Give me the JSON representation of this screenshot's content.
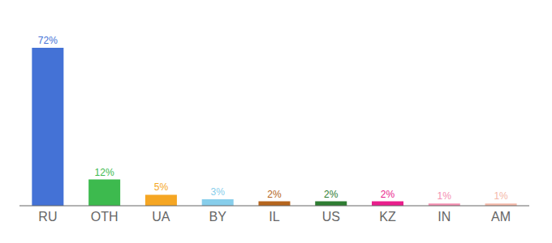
{
  "chart_data": {
    "type": "bar",
    "categories": [
      "RU",
      "OTH",
      "UA",
      "BY",
      "IL",
      "US",
      "KZ",
      "IN",
      "AM"
    ],
    "values": [
      72,
      12,
      5,
      3,
      2,
      2,
      2,
      1,
      1
    ],
    "value_labels": [
      "72%",
      "12%",
      "5%",
      "3%",
      "2%",
      "2%",
      "2%",
      "1%",
      "1%"
    ],
    "colors": [
      "#4472d6",
      "#3dba4e",
      "#f5a623",
      "#87ceeb",
      "#b5651d",
      "#2e7d32",
      "#e91e8c",
      "#f48fb1",
      "#f4b8a8"
    ],
    "ylim": [
      0,
      82
    ],
    "grid": false,
    "data_labels": true,
    "tick_labels": "x"
  }
}
